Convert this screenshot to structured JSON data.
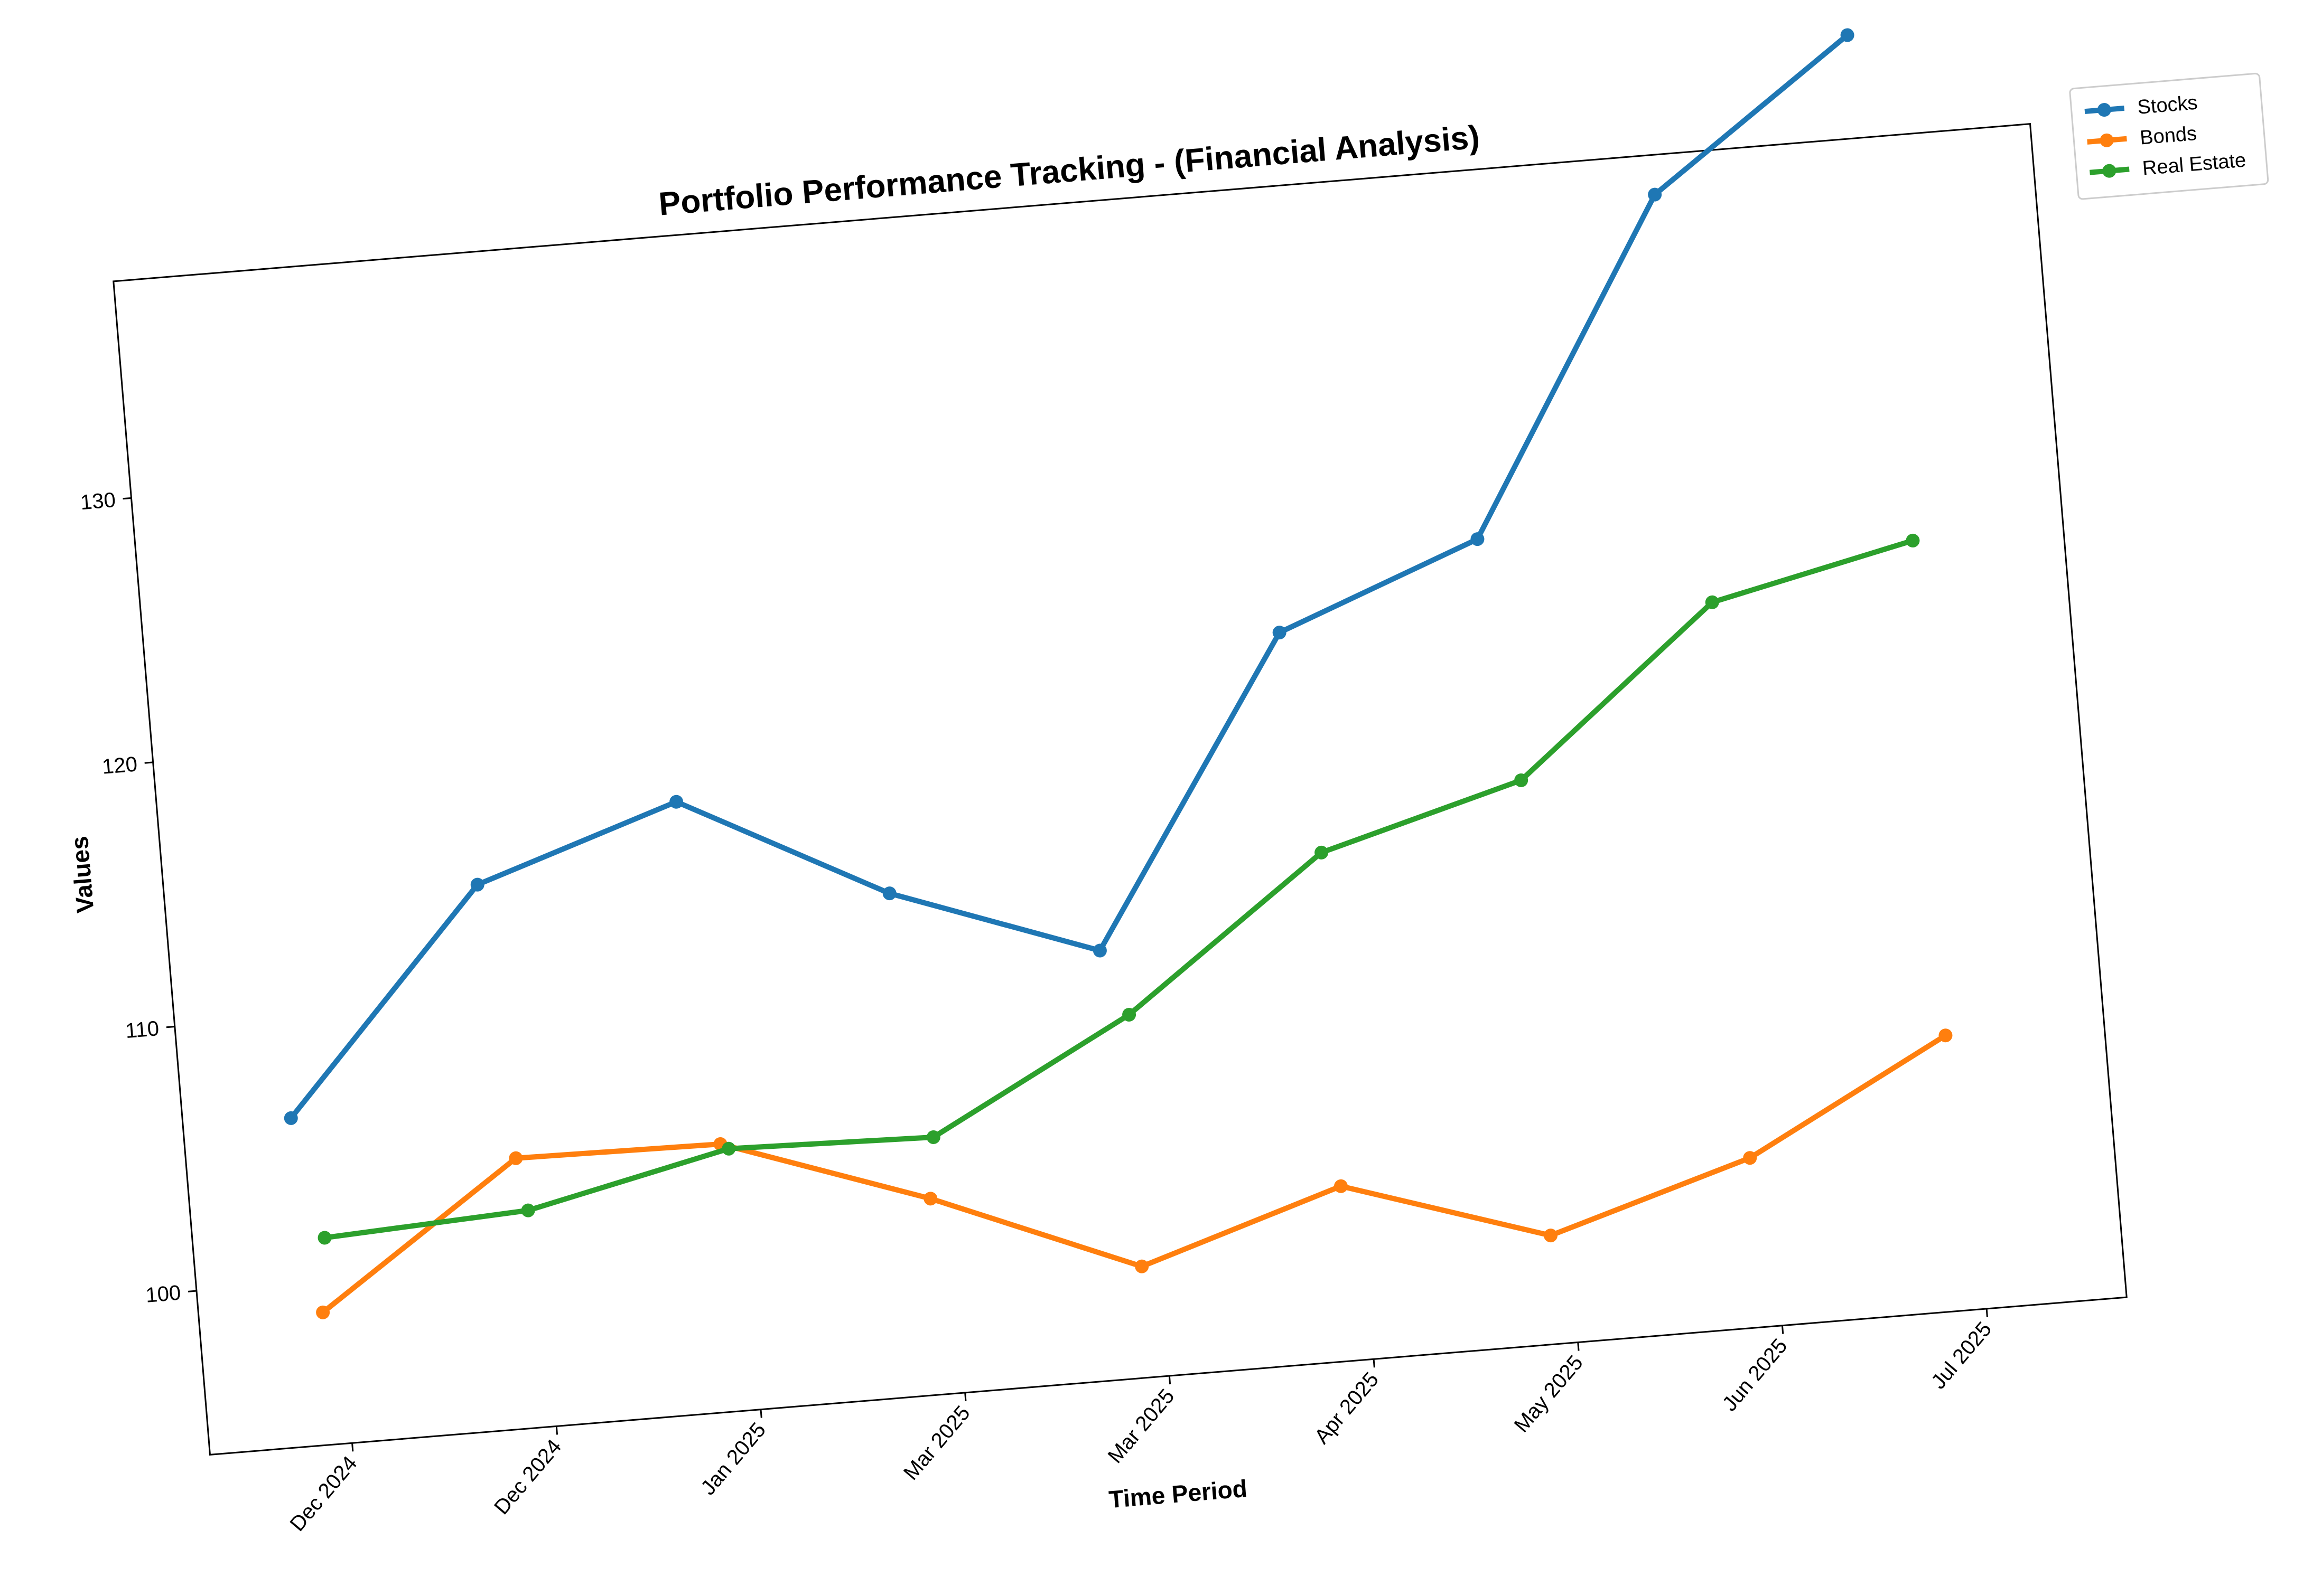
{
  "chart_data": {
    "type": "line",
    "title": "Portfolio Performance Tracking - (Financial Analysis)",
    "xlabel": "Time Period",
    "ylabel": "Values",
    "x_tick_labels": [
      "Dec 2024",
      "Dec 2024",
      "Jan 2025",
      "Mar 2025",
      "Mar 2025",
      "Apr 2025",
      "May 2025",
      "Jun 2025",
      "Jul 2025"
    ],
    "y_ticks": [
      100,
      110,
      120,
      130
    ],
    "ylim": [
      93.8,
      138.2
    ],
    "grid": false,
    "legend_position": "top-right, outside plot",
    "series": [
      {
        "name": "Stocks",
        "color": "#1f77b4",
        "values": [
          106.2,
          114.4,
          116.9,
          112.8,
          110.0,
          121.4,
          124.3,
          136.7,
          142.1
        ]
      },
      {
        "name": "Bonds",
        "color": "#ff7f0e",
        "values": [
          98.8,
          104.0,
          103.9,
          101.2,
          98.0,
          100.4,
          97.9,
          100.2,
          104.2
        ]
      },
      {
        "name": "Real Estate",
        "color": "#2ca02c",
        "values": [
          101.6,
          102.0,
          103.7,
          103.5,
          107.5,
          113.0,
          115.1,
          121.2,
          122.9
        ]
      }
    ]
  }
}
